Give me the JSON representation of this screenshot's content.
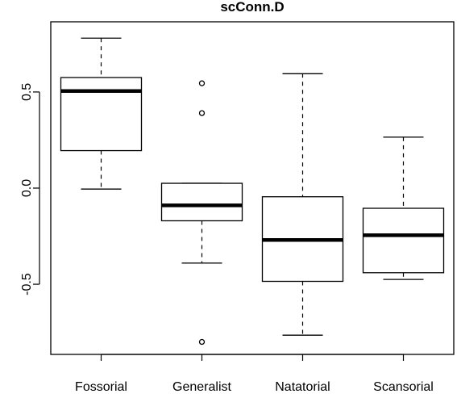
{
  "chart_data": {
    "type": "boxplot",
    "title": "scConn.D",
    "xlabel": "",
    "ylabel": "",
    "categories": [
      "Fossorial",
      "Generalist",
      "Natatorial",
      "Scansorial"
    ],
    "boxes": [
      {
        "category": "Fossorial",
        "whisker_low": -0.005,
        "q1": 0.195,
        "median": 0.505,
        "q3": 0.575,
        "whisker_high": 0.78,
        "outliers": []
      },
      {
        "category": "Generalist",
        "whisker_low": -0.39,
        "q1": -0.17,
        "median": -0.09,
        "q3": 0.025,
        "whisker_high": 0.025,
        "outliers": [
          0.545,
          0.39,
          -0.8
        ]
      },
      {
        "category": "Natatorial",
        "whisker_low": -0.765,
        "q1": -0.485,
        "median": -0.27,
        "q3": -0.045,
        "whisker_high": 0.595,
        "outliers": []
      },
      {
        "category": "Scansorial",
        "whisker_low": -0.475,
        "q1": -0.44,
        "median": -0.245,
        "q3": -0.105,
        "whisker_high": 0.265,
        "outliers": []
      }
    ],
    "y_ticks": [
      -0.5,
      0.0,
      0.5
    ],
    "y_tick_labels": [
      "-0.5",
      "0.0",
      "0.5"
    ],
    "ylim": [
      -0.865,
      0.865
    ],
    "grid": false,
    "legend": "none"
  }
}
